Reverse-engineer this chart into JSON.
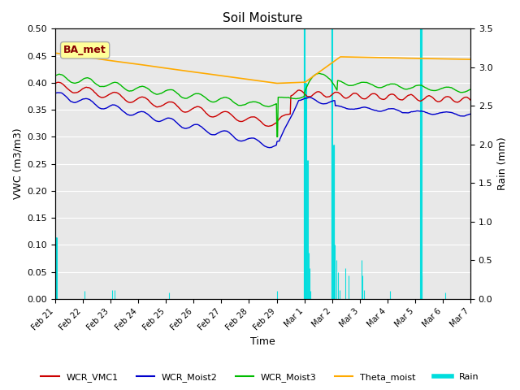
{
  "title": "Soil Moisture",
  "xlabel": "Time",
  "ylabel_left": "VWC (m3/m3)",
  "ylabel_right": "Rain (mm)",
  "ylim_left": [
    0.0,
    0.5
  ],
  "ylim_right": [
    0.0,
    3.5
  ],
  "x_tick_labels": [
    "Feb 21",
    "Feb 22",
    "Feb 23",
    "Feb 24",
    "Feb 25",
    "Feb 26",
    "Feb 27",
    "Feb 28",
    "Feb 29",
    "Mar 1",
    "Mar 2",
    "Mar 3",
    "Mar 4",
    "Mar 5",
    "Mar 6",
    "Mar 7"
  ],
  "colors": {
    "WCR_VMC1": "#cc0000",
    "WCR_Moist2": "#0000cc",
    "WCR_Moist3": "#00bb00",
    "Theta_moist": "#ffaa00",
    "Rain": "#00dddd"
  },
  "annotation_text": "BA_met",
  "annotation_fg": "#880000",
  "annotation_bg": "#ffff99",
  "background_color": "#e8e8e8",
  "grid_color": "#ffffff",
  "yticks_left": [
    0.0,
    0.05,
    0.1,
    0.15,
    0.2,
    0.25,
    0.3,
    0.35,
    0.4,
    0.45,
    0.5
  ],
  "yticks_right": [
    0.0,
    0.5,
    1.0,
    1.5,
    2.0,
    2.5,
    3.0,
    3.5
  ]
}
